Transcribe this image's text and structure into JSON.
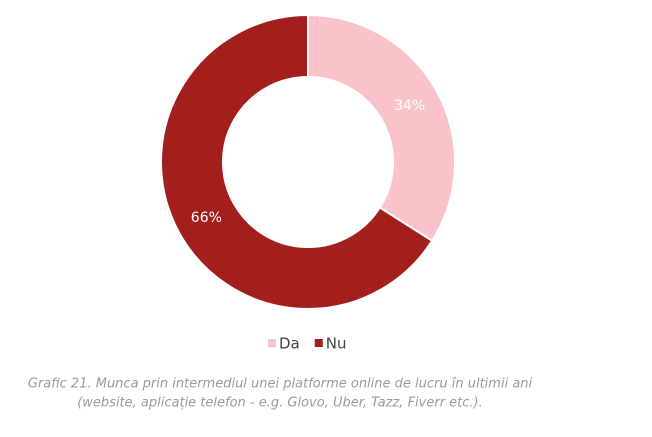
{
  "chart_data": {
    "type": "donut",
    "categories": [
      "Da",
      "Nu"
    ],
    "values": [
      34,
      66
    ],
    "value_labels": [
      "34%",
      "66%"
    ],
    "colors": [
      "#f9c3c9",
      "#a31f1c"
    ],
    "caption": [
      "Grafic 21. Munca prin intermediul unei platforme online de lucru în ultimii ani",
      "(website, aplicație telefon - e.g. Glovo, Uber, Tazz, Fiverr etc.)."
    ]
  }
}
